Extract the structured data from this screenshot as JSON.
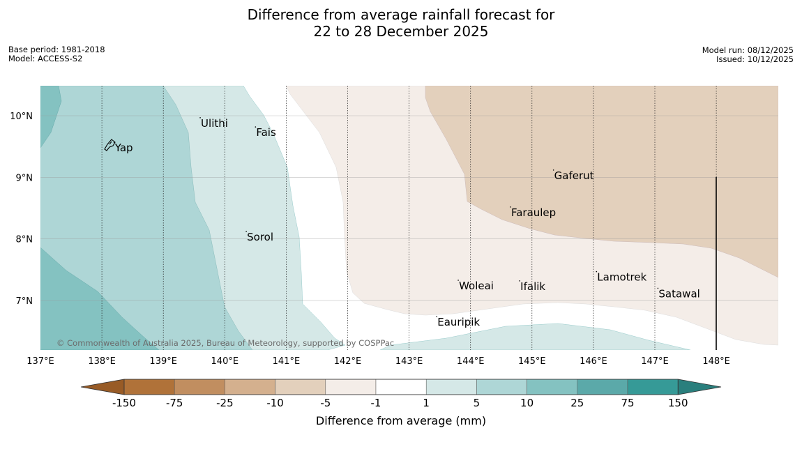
{
  "title": {
    "line1": "Difference from average rainfall forecast for",
    "line2": "22 to 28 December 2025"
  },
  "meta": {
    "base_period": "Base period: 1981-2018",
    "model": "Model: ACCESS-S2",
    "model_run": "Model run: 08/12/2025",
    "issued": "Issued: 10/12/2025"
  },
  "map": {
    "lon_labels": [
      "137°E",
      "138°E",
      "139°E",
      "140°E",
      "141°E",
      "142°E",
      "143°E",
      "144°E",
      "145°E",
      "146°E",
      "147°E",
      "148°E"
    ],
    "lat_labels": [
      "10°N",
      "9°N",
      "8°N",
      "7°N"
    ],
    "places": [
      {
        "name": "Ulithi",
        "lon": 139.6,
        "lat": 9.9
      },
      {
        "name": "Fais",
        "lon": 140.5,
        "lat": 9.75
      },
      {
        "name": "Yap",
        "lon": 138.2,
        "lat": 9.5
      },
      {
        "name": "Gaferut",
        "lon": 145.35,
        "lat": 9.05
      },
      {
        "name": "Faraulep",
        "lon": 144.65,
        "lat": 8.45
      },
      {
        "name": "Sorol",
        "lon": 140.35,
        "lat": 8.05
      },
      {
        "name": "Lamotrek",
        "lon": 146.05,
        "lat": 7.4
      },
      {
        "name": "Woleai",
        "lon": 143.8,
        "lat": 7.26
      },
      {
        "name": "Ifalik",
        "lon": 144.8,
        "lat": 7.25
      },
      {
        "name": "Satawal",
        "lon": 147.05,
        "lat": 7.13
      },
      {
        "name": "Eauripik",
        "lon": 143.45,
        "lat": 6.67
      }
    ],
    "copyright": "© Commonwealth of Australia 2025, Bureau of Meteorology, supported by COSPPac"
  },
  "colorbar": {
    "ticks": [
      "-150",
      "-75",
      "-25",
      "-10",
      "-5",
      "-1",
      "1",
      "5",
      "10",
      "25",
      "75",
      "150"
    ],
    "colors": [
      "#b07239",
      "#c18e60",
      "#d4b08e",
      "#e3d0bc",
      "#f4ede8",
      "#ffffff",
      "#d5e8e7",
      "#aed6d6",
      "#84c2c1",
      "#5ba9a9",
      "#369a97",
      "#2a7f7d"
    ],
    "label": "Difference from average (mm)"
  }
}
